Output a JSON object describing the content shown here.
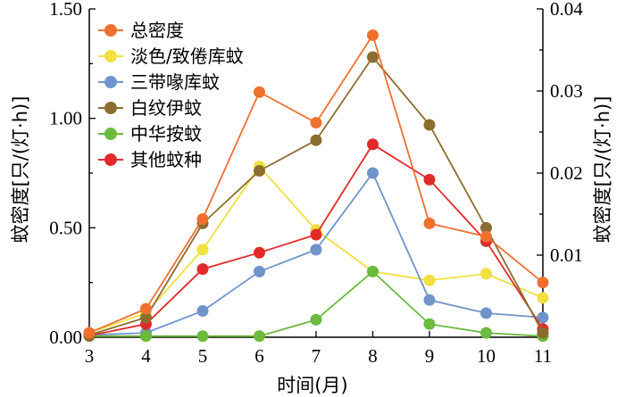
{
  "chart_data": {
    "type": "line",
    "x": [
      3,
      4,
      5,
      6,
      7,
      8,
      9,
      10,
      11
    ],
    "xlabel": "时间(月)",
    "ylabel_left": "蚊密度[只/(灯·h)]",
    "ylabel_right": "蚊密度[只/(灯·h)]",
    "ylim_left": [
      0,
      1.5
    ],
    "ylim_right": [
      0,
      0.04
    ],
    "yticks_left": [
      "0.00",
      "0.50",
      "1.00",
      "1.50"
    ],
    "yticks_right": [
      "0.01",
      "0.02",
      "0.03",
      "0.04"
    ],
    "xticks": [
      "3",
      "4",
      "5",
      "6",
      "7",
      "8",
      "9",
      "10",
      "11"
    ],
    "grid": false,
    "legend_position": "top-left",
    "series": [
      {
        "name": "总密度",
        "color": "#f07030",
        "axis": "left",
        "values": [
          0.02,
          0.13,
          0.54,
          1.12,
          0.98,
          1.38,
          0.52,
          0.46,
          0.25
        ]
      },
      {
        "name": "淡色/致倦库蚊",
        "color": "#f0e040",
        "axis": "left",
        "values": [
          0.02,
          0.11,
          0.4,
          0.78,
          0.49,
          0.3,
          0.26,
          0.29,
          0.18
        ]
      },
      {
        "name": "三带喙库蚊",
        "color": "#6f94cc",
        "axis": "left",
        "values": [
          0.01,
          0.02,
          0.12,
          0.3,
          0.4,
          0.75,
          0.17,
          0.11,
          0.09
        ]
      },
      {
        "name": "白纹伊蚊",
        "color": "#8b6d2f",
        "axis": "left",
        "values": [
          0.01,
          0.09,
          0.52,
          0.76,
          0.9,
          1.28,
          0.97,
          0.5,
          0.02
        ]
      },
      {
        "name": "中华按蚊",
        "color": "#6cbb3c",
        "axis": "left",
        "values": [
          0.005,
          0.005,
          0.005,
          0.005,
          0.08,
          0.3,
          0.06,
          0.02,
          0.005
        ]
      },
      {
        "name": "其他蚊种",
        "color": "#e32a2a",
        "axis": "right",
        "values": [
          0.0002,
          0.0016,
          0.0083,
          0.0103,
          0.0125,
          0.0235,
          0.0192,
          0.0117,
          0.001
        ]
      }
    ]
  }
}
